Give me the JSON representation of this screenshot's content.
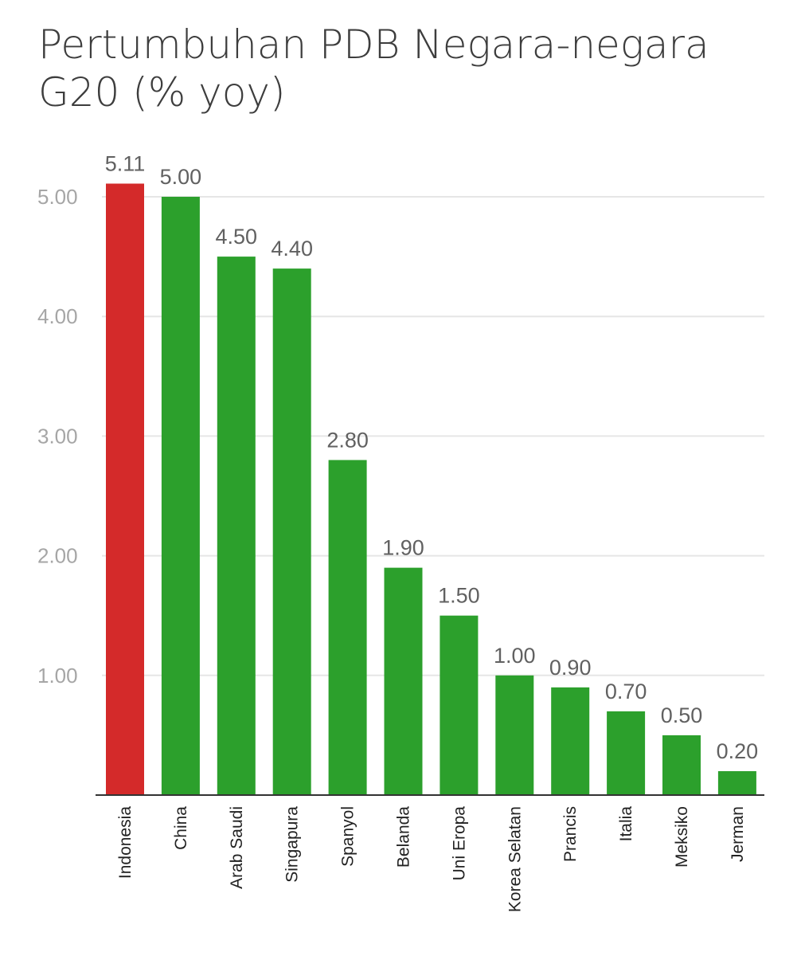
{
  "chart_data": {
    "type": "bar",
    "title": "Pertumbuhan PDB Negara-negara G20 (% yoy)",
    "xlabel": "",
    "ylabel": "",
    "ylim": [
      0,
      5
    ],
    "yticks": [
      1,
      2,
      3,
      4,
      5
    ],
    "ytick_labels": [
      "1.00",
      "2.00",
      "3.00",
      "4.00",
      "5.00"
    ],
    "grid": true,
    "legend": "none",
    "categories": [
      "Indonesia",
      "China",
      "Arab Saudi",
      "Singapura",
      "Spanyol",
      "Belanda",
      "Uni Eropa",
      "Korea Selatan",
      "Prancis",
      "Italia",
      "Meksiko",
      "Jerman"
    ],
    "values": [
      5.11,
      5.0,
      4.5,
      4.4,
      2.8,
      1.9,
      1.5,
      1.0,
      0.9,
      0.7,
      0.5,
      0.2
    ],
    "value_labels": [
      "5.11",
      "5.00",
      "4.50",
      "4.40",
      "2.80",
      "1.90",
      "1.50",
      "1.00",
      "0.90",
      "0.70",
      "0.50",
      "0.20"
    ],
    "colors": [
      "#d42a2a",
      "#2ca02c",
      "#2ca02c",
      "#2ca02c",
      "#2ca02c",
      "#2ca02c",
      "#2ca02c",
      "#2ca02c",
      "#2ca02c",
      "#2ca02c",
      "#2ca02c",
      "#2ca02c"
    ],
    "grid_color": "#e6e6e6",
    "axis_color": "#333333"
  }
}
